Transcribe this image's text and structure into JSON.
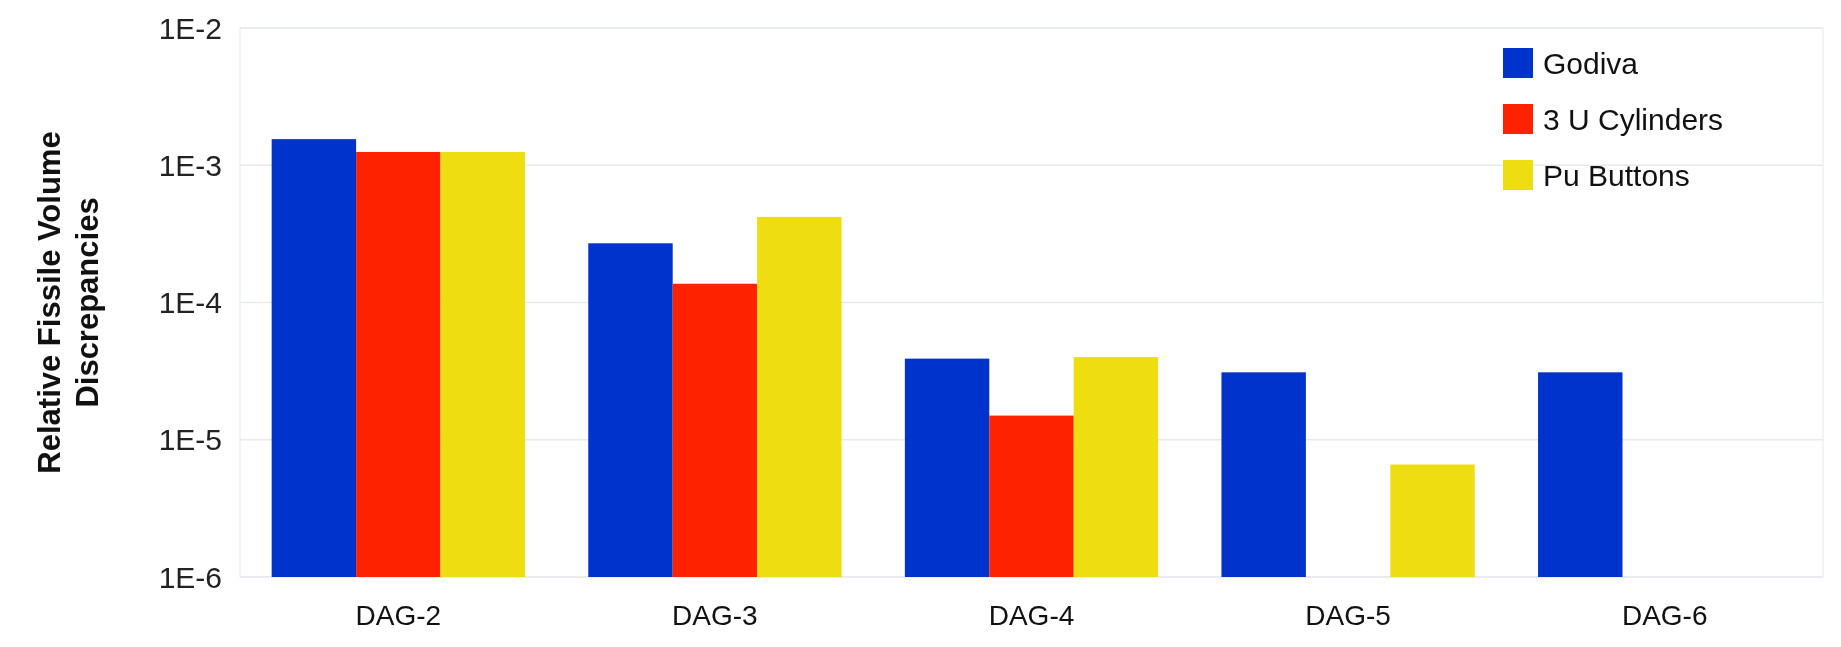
{
  "chart_data": {
    "type": "bar",
    "ylabel": "Relative Fissile Volume Discrepancies",
    "categories": [
      "DAG-2",
      "DAG-3",
      "DAG-4",
      "DAG-5",
      "DAG-6"
    ],
    "series": [
      {
        "name": "Godiva",
        "color": "#0033cc",
        "values": [
          0.00155,
          0.00027,
          3.9e-05,
          3.1e-05,
          3.1e-05
        ]
      },
      {
        "name": "3 U Cylinders",
        "color": "#ff2200",
        "values": [
          0.00125,
          0.000137,
          1.5e-05,
          null,
          null
        ]
      },
      {
        "name": "Pu Buttons",
        "color": "#eedd11",
        "values": [
          0.00125,
          0.00042,
          4e-05,
          6.6e-06,
          null
        ]
      }
    ],
    "log": true,
    "ylim": [
      1e-06,
      0.01
    ],
    "yticks": [
      {
        "value": 1e-06,
        "label": "1E-6"
      },
      {
        "value": 1e-05,
        "label": "1E-5"
      },
      {
        "value": 0.0001,
        "label": "1E-4"
      },
      {
        "value": 0.001,
        "label": "1E-3"
      },
      {
        "value": 0.01,
        "label": "1E-2"
      }
    ],
    "grid": "y",
    "legend": "top right"
  }
}
